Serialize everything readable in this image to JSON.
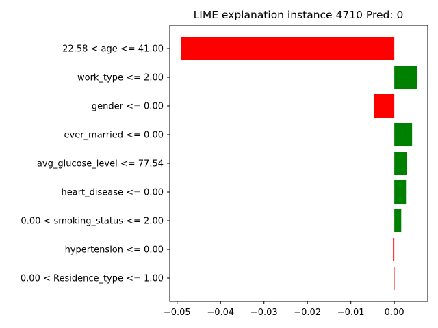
{
  "chart_data": {
    "type": "bar",
    "orientation": "horizontal",
    "title": "LIME explanation instance 4710 Pred: 0",
    "xlabel": "",
    "ylabel": "",
    "xlim": [
      -0.0517,
      0.0077
    ],
    "xticks": [
      -0.05,
      -0.04,
      -0.03,
      -0.02,
      -0.01,
      0.0
    ],
    "xtick_labels": [
      "−0.05",
      "−0.04",
      "−0.03",
      "−0.02",
      "−0.01",
      "0.00"
    ],
    "grid": false,
    "legend": "none",
    "positive_color": "#008000",
    "negative_color": "#ff0000",
    "categories": [
      "22.58 < age <= 41.00",
      "work_type <= 2.00",
      "gender <= 0.00",
      "ever_married <= 0.00",
      "avg_glucose_level <= 77.54",
      "heart_disease <= 0.00",
      "0.00 < smoking_status <= 2.00",
      "hypertension <= 0.00",
      "0.00 < Residence_type <= 1.00"
    ],
    "values": [
      -0.0491,
      0.0052,
      -0.0047,
      0.0041,
      0.0029,
      0.0027,
      0.0016,
      -0.0003,
      -0.0001
    ]
  }
}
